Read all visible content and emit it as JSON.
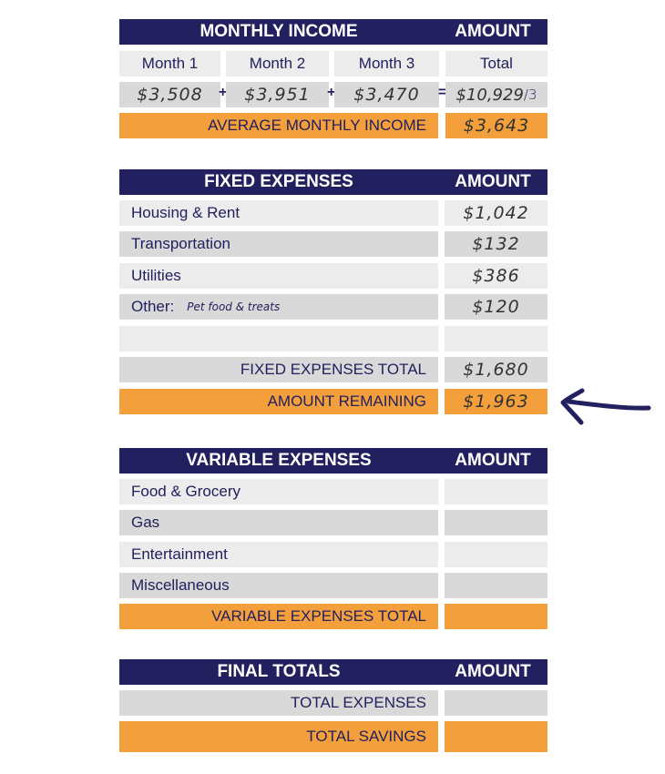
{
  "colors": {
    "navy": "#22205e",
    "orange": "#f3a03c",
    "light_gray": "#ececec",
    "gray": "#d9d9d9"
  },
  "income": {
    "title": "MONTHLY INCOME",
    "amount_header": "AMOUNT",
    "columns": [
      "Month 1",
      "Month 2",
      "Month 3",
      "Total"
    ],
    "values": [
      "$3,508",
      "$3,951",
      "$3,470",
      "$10,929"
    ],
    "divisor": "/3",
    "plus": "+",
    "equals": "=",
    "average_label": "AVERAGE MONTHLY INCOME",
    "average_value": "$3,643"
  },
  "fixed": {
    "title": "FIXED EXPENSES",
    "amount_header": "AMOUNT",
    "items": [
      {
        "label": "Housing & Rent",
        "value": "$1,042"
      },
      {
        "label": "Transportation",
        "value": "$132"
      },
      {
        "label": "Utilities",
        "value": "$386"
      },
      {
        "label": "Other:",
        "note": "Pet food & treats",
        "value": "$120"
      },
      {
        "label": "",
        "value": ""
      }
    ],
    "total_label": "FIXED EXPENSES TOTAL",
    "total_value": "$1,680",
    "remaining_label": "AMOUNT REMAINING",
    "remaining_value": "$1,963"
  },
  "variable": {
    "title": "VARIABLE EXPENSES",
    "amount_header": "AMOUNT",
    "items": [
      {
        "label": "Food & Grocery",
        "value": ""
      },
      {
        "label": "Gas",
        "value": ""
      },
      {
        "label": "Entertainment",
        "value": ""
      },
      {
        "label": "Miscellaneous",
        "value": ""
      }
    ],
    "total_label": "VARIABLE EXPENSES TOTAL",
    "total_value": ""
  },
  "final": {
    "title": "FINAL TOTALS",
    "amount_header": "AMOUNT",
    "expenses_label": "TOTAL EXPENSES",
    "expenses_value": "",
    "savings_label": "TOTAL SAVINGS",
    "savings_value": ""
  },
  "annotation": {
    "icon": "hand-drawn-arrow-left"
  }
}
